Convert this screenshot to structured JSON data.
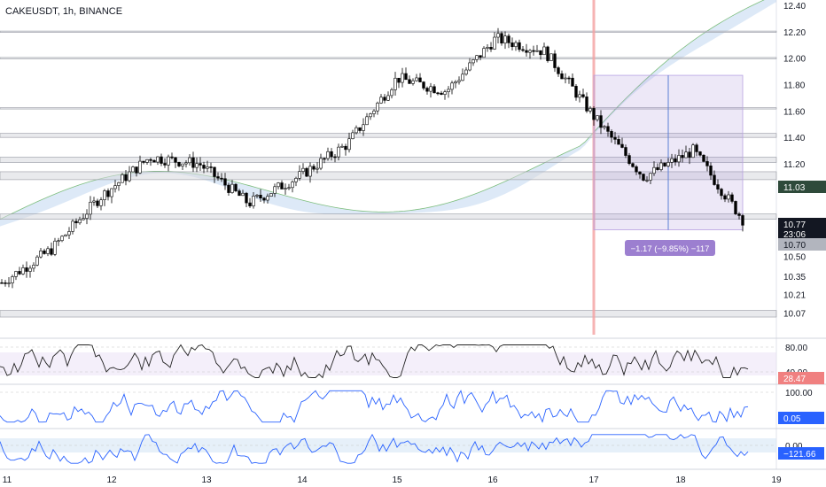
{
  "header": {
    "symbol": "CAKEUSDT",
    "interval": "1h",
    "exchange": "BINANCE"
  },
  "chart_data": {
    "type": "candlestick",
    "price_axis": {
      "ticks": [
        "12.40",
        "12.20",
        "12.00",
        "11.80",
        "11.60",
        "11.40",
        "11.20",
        "10.50",
        "10.35",
        "10.21",
        "10.07"
      ],
      "range": [
        10.05,
        12.42
      ]
    },
    "x_axis": {
      "ticks": [
        "11",
        "12",
        "13",
        "14",
        "15",
        "16",
        "17",
        "18",
        "19"
      ]
    },
    "price_labels": {
      "level": "11.03",
      "last": "10.77",
      "countdown": "23:06",
      "low": "10.70"
    },
    "measure": {
      "label": "−1.17 (−9.85%) −117",
      "from_price": 11.87,
      "to_price": 10.7
    },
    "horizontal_levels": [
      12.2,
      12.0,
      11.62,
      11.4,
      11.23,
      11.17,
      11.11,
      10.8,
      10.07
    ],
    "candles_ohlc_sample": [
      10.3,
      10.55,
      10.95,
      11.25,
      11.2,
      10.9,
      11.1,
      11.35,
      11.85,
      11.75,
      12.15,
      12.05,
      11.55,
      11.1,
      11.3,
      10.78
    ],
    "accent_colors": {
      "up": "#ffffff",
      "down": "#000000",
      "vertical_marker": "#f4a0a0",
      "measure": "#9c7fd0",
      "cloud": "#bcd4f0"
    },
    "oscillators": [
      {
        "kind": "rsi",
        "levels": [
          "80.00",
          "40.00"
        ],
        "value": "28.47",
        "value_color": "#f08080"
      },
      {
        "kind": "stoch",
        "levels": [
          "100.00"
        ],
        "value": "0.05",
        "value_color": "#2962ff"
      },
      {
        "kind": "cci",
        "levels": [
          "0.00"
        ],
        "value": "−121.66",
        "value_color": "#2962ff"
      }
    ]
  }
}
